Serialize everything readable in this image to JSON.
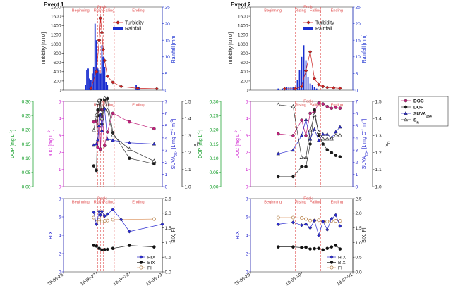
{
  "colors": {
    "turbidity": "#cc2020",
    "rainfall": "#1a2fd0",
    "doc": "#c0207a",
    "dop": "#1a1a1a",
    "suva": "#2a2ad0",
    "sr": "#303030",
    "hix": "#2a2ad0",
    "bix": "#111111",
    "fi": "#b07a40",
    "phase": "#e05050",
    "dop_axis": "#0a9a20",
    "doc_axis": "#d020d0"
  },
  "legend_top": {
    "turbidity": "Turbidity",
    "rainfall": "Rainfall"
  },
  "legend_mid": {
    "doc": "DOC",
    "dop": "DOP",
    "suva": "SUVA",
    "suva_sub": "254",
    "sr": "S",
    "sr_sub": "R"
  },
  "legend_bot": {
    "hix": "HIX",
    "bix": "BIX",
    "fi": "FI"
  },
  "axis_titles": {
    "turbidity": "Turbidity [NTU]",
    "rainfall": "Rainfall [mm]",
    "dop": "DOP [mg L",
    "doc": "DOC [mg L",
    "suva": "SUVA",
    "suva_sub": "254",
    "suva_unit": " [L mg C",
    "suva_close": " m",
    "sr": "S",
    "sr_sub": "R",
    "hix": "HIX",
    "bixfi": "BIX, FI",
    "exp": "-1",
    "bracket": "]"
  },
  "ticks": {
    "turbidity": [
      "0",
      "200",
      "400",
      "600",
      "800",
      "1000",
      "1200",
      "1400",
      "1600",
      "1800"
    ],
    "rainfall": [
      "0",
      "5",
      "10",
      "15",
      "20",
      "25"
    ],
    "dop": [
      "0.00",
      "0.05",
      "0.10",
      "0.15",
      "0.20",
      "0.25",
      "0.30"
    ],
    "doc": [
      "0",
      "1",
      "2",
      "3",
      "4",
      "5"
    ],
    "suva": [
      "0",
      "1",
      "2",
      "3",
      "4",
      "5",
      "6",
      "7"
    ],
    "sr": [
      "1.0",
      "1.1",
      "1.2",
      "1.3",
      "1.4",
      "1.5"
    ],
    "hix": [
      "0",
      "2",
      "4",
      "6",
      "8"
    ],
    "bixfi": [
      "0.0",
      "0.5",
      "1.0",
      "1.5",
      "2.0",
      "2.5"
    ]
  },
  "chart_data": [
    {
      "title": "Event 1",
      "type": "line",
      "phases": {
        "beginning": "Beginning",
        "rising": "Rising",
        "peak": "Peak",
        "falling": "Falling",
        "ending": "Ending"
      },
      "phase_bounds": [
        "19-06-27 01:00",
        "19-06-27 03:00",
        "19-06-27 05:00",
        "19-06-27 13:00"
      ],
      "x_ticks": [
        "19-06-26",
        "19-06-27",
        "19-06-28",
        "19-06-29"
      ],
      "xlim": [
        "19-06-26",
        "19-06-29"
      ],
      "turbidity": {
        "ylim": [
          0,
          1800
        ],
        "x": [
          "19-06-26 20:00",
          "19-06-27 00:00",
          "19-06-27 02:00",
          "19-06-27 03:00",
          "19-06-27 04:00",
          "19-06-27 05:00",
          "19-06-27 06:00",
          "19-06-27 08:00",
          "19-06-27 12:00",
          "19-06-27 18:00",
          "19-06-28 06:00",
          "19-06-28 20:00"
        ],
        "y": [
          35,
          400,
          1080,
          1560,
          1250,
          880,
          640,
          300,
          170,
          80,
          40,
          30
        ]
      },
      "rainfall": {
        "ylim": [
          0,
          25
        ],
        "x": [
          "19-06-26 16:00",
          "19-06-26 17:00",
          "19-06-26 18:00",
          "19-06-26 19:00",
          "19-06-26 20:00",
          "19-06-26 21:00",
          "19-06-26 22:00",
          "19-06-26 23:00",
          "19-06-27 00:00",
          "19-06-27 01:00",
          "19-06-27 02:00",
          "19-06-27 03:00",
          "19-06-27 04:00",
          "19-06-27 05:00",
          "19-06-27 06:00",
          "19-06-27 07:00",
          "19-06-27 08:00",
          "19-06-28 05:00",
          "19-06-28 06:00",
          "19-06-28 07:00"
        ],
        "y": [
          1.5,
          6,
          6.5,
          3.5,
          3,
          5,
          7,
          20,
          15,
          6.5,
          6,
          5,
          13.5,
          10,
          7,
          2.5,
          1.5,
          1.5,
          1,
          1
        ]
      },
      "doc": {
        "ylim": [
          0,
          5
        ],
        "x": [
          "19-06-26 22:00",
          "19-06-27 00:00",
          "19-06-27 01:00",
          "19-06-27 02:00",
          "19-06-27 03:00",
          "19-06-27 04:00",
          "19-06-27 06:00",
          "19-06-27 08:00",
          "19-06-27 12:00",
          "19-06-28 00:00",
          "19-06-28 18:00"
        ],
        "y": [
          3.8,
          3.85,
          2.3,
          4.4,
          2.2,
          4.5,
          2.4,
          3.2,
          4.3,
          3.8,
          3.4
        ]
      },
      "dop": {
        "ylim": [
          0,
          0.3
        ],
        "x": [
          "19-06-26 22:00",
          "19-06-27 00:00",
          "19-06-27 01:00",
          "19-06-27 02:00",
          "19-06-27 03:00",
          "19-06-27 04:00",
          "19-06-27 06:00",
          "19-06-27 08:00",
          "19-06-27 12:00",
          "19-06-28 00:00",
          "19-06-28 18:00"
        ],
        "y": [
          0.073,
          0.057,
          0.27,
          0.25,
          0.305,
          0.22,
          0.305,
          0.31,
          0.19,
          0.1,
          0.08
        ]
      },
      "suva": {
        "ylim": [
          0,
          7
        ],
        "x": [
          "19-06-26 22:00",
          "19-06-27 00:00",
          "19-06-27 01:00",
          "19-06-27 02:00",
          "19-06-27 03:00",
          "19-06-27 04:00",
          "19-06-27 06:00",
          "19-06-27 08:00",
          "19-06-27 12:00",
          "19-06-28 00:00",
          "19-06-28 18:00"
        ],
        "y": [
          3.4,
          3.5,
          3.85,
          5.0,
          6.2,
          4.6,
          6.4,
          3.9,
          3.8,
          3.6,
          3.5
        ]
      },
      "sr": {
        "ylim": [
          1.0,
          1.5
        ],
        "x": [
          "19-06-26 22:00",
          "19-06-27 00:00",
          "19-06-27 01:00",
          "19-06-27 02:00",
          "19-06-27 03:00",
          "19-06-27 04:00",
          "19-06-27 06:00",
          "19-06-27 08:00",
          "19-06-27 12:00",
          "19-06-28 00:00",
          "19-06-28 18:00"
        ],
        "y": [
          1.33,
          1.42,
          1.49,
          1.51,
          1.44,
          1.4,
          1.52,
          1.45,
          1.3,
          1.22,
          1.15
        ]
      },
      "hix": {
        "ylim": [
          0,
          8
        ],
        "x": [
          "19-06-26 22:00",
          "19-06-27 00:00",
          "19-06-27 02:00",
          "19-06-27 03:00",
          "19-06-27 04:00",
          "19-06-27 06:00",
          "19-06-27 08:00",
          "19-06-27 12:00",
          "19-06-27 18:00",
          "19-06-28 00:00",
          "19-06-29 00:00"
        ],
        "y": [
          6.5,
          5.2,
          6.6,
          6.2,
          6.6,
          6.1,
          6.3,
          6.8,
          5.7,
          4.4,
          5.2
        ]
      },
      "bix": {
        "ylim": [
          0,
          2.5
        ],
        "x": [
          "19-06-26 22:00",
          "19-06-27 00:00",
          "19-06-27 02:00",
          "19-06-27 04:00",
          "19-06-27 06:00",
          "19-06-27 08:00",
          "19-06-27 12:00",
          "19-06-28 00:00",
          "19-06-28 18:00"
        ],
        "y": [
          0.9,
          0.88,
          0.8,
          0.75,
          0.76,
          0.77,
          0.8,
          0.9,
          0.85
        ]
      },
      "fi": {
        "ylim": [
          0,
          2.5
        ],
        "x": [
          "19-06-26 22:00",
          "19-06-27 00:00",
          "19-06-27 02:00",
          "19-06-27 04:00",
          "19-06-27 06:00",
          "19-06-27 08:00",
          "19-06-27 12:00",
          "19-06-28 18:00"
        ],
        "y": [
          1.85,
          1.7,
          1.78,
          1.72,
          1.74,
          1.75,
          1.78,
          1.8
        ]
      }
    },
    {
      "title": "Event 2",
      "type": "line",
      "phases": {
        "beginning": "Beginning",
        "rising": "Rising",
        "peak": "Peak",
        "falling": "Falling",
        "ending": "Ending"
      },
      "phase_bounds": [
        "19-06-29 21:00",
        "19-06-30 02:00",
        "19-06-30 04:00",
        "19-06-30 09:00"
      ],
      "x_ticks": [
        "19-06-29",
        "19-06-30",
        "19-07-01"
      ],
      "xlim": [
        "19-06-29",
        "19-07-01"
      ],
      "turbidity": {
        "ylim": [
          0,
          1800
        ],
        "x": [
          "19-06-29 16:00",
          "19-06-29 21:00",
          "19-06-30 00:00",
          "19-06-30 02:00",
          "19-06-30 04:00",
          "19-06-30 06:00",
          "19-06-30 08:00",
          "19-06-30 10:00",
          "19-06-30 12:00",
          "19-06-30 15:00",
          "19-06-30 18:00"
        ],
        "y": [
          30,
          30,
          80,
          420,
          830,
          250,
          120,
          80,
          60,
          50,
          40
        ]
      },
      "rainfall": {
        "ylim": [
          0,
          25
        ],
        "x": [
          "19-06-29 13:00",
          "19-06-29 15:00",
          "19-06-29 17:00",
          "19-06-29 18:00",
          "19-06-29 19:00",
          "19-06-29 20:00",
          "19-06-29 21:00",
          "19-06-29 22:00",
          "19-06-29 23:00",
          "19-06-30 00:00",
          "19-06-30 01:00",
          "19-06-30 02:00",
          "19-06-30 03:00",
          "19-06-30 04:00",
          "19-06-30 05:00",
          "19-06-30 06:00",
          "19-06-30 07:00"
        ],
        "y": [
          0.5,
          0.5,
          1,
          1,
          1,
          1,
          1,
          3,
          6,
          10,
          13.5,
          9,
          4,
          2,
          1.5,
          1,
          0.5
        ]
      },
      "doc": {
        "ylim": [
          0,
          5
        ],
        "x": [
          "19-06-29 13:00",
          "19-06-29 20:00",
          "19-06-30 00:00",
          "19-06-30 02:00",
          "19-06-30 04:00",
          "19-06-30 06:00",
          "19-06-30 08:00",
          "19-06-30 10:00",
          "19-06-30 12:00",
          "19-06-30 14:00",
          "19-06-30 16:00",
          "19-06-30 18:00"
        ],
        "y": [
          3.1,
          3.0,
          3.9,
          3.0,
          4.3,
          4.4,
          4.9,
          4.85,
          4.7,
          4.6,
          4.65,
          4.6
        ]
      },
      "dop": {
        "ylim": [
          0,
          0.3
        ],
        "x": [
          "19-06-29 13:00",
          "19-06-29 20:00",
          "19-06-30 00:00",
          "19-06-30 02:00",
          "19-06-30 04:00",
          "19-06-30 06:00",
          "19-06-30 08:00",
          "19-06-30 10:00",
          "19-06-30 12:00",
          "19-06-30 14:00",
          "19-06-30 16:00",
          "19-06-30 18:00"
        ],
        "y": [
          0.035,
          0.035,
          0.07,
          0.07,
          0.15,
          0.27,
          0.18,
          0.15,
          0.13,
          0.12,
          0.11,
          0.105
        ]
      },
      "suva": {
        "ylim": [
          0,
          7
        ],
        "x": [
          "19-06-29 13:00",
          "19-06-29 20:00",
          "19-06-30 00:00",
          "19-06-30 02:00",
          "19-06-30 04:00",
          "19-06-30 06:00",
          "19-06-30 08:00",
          "19-06-30 10:00",
          "19-06-30 12:00",
          "19-06-30 14:00",
          "19-06-30 16:00",
          "19-06-30 18:00"
        ],
        "y": [
          2.7,
          3.0,
          4.2,
          5.5,
          3.9,
          4.7,
          3.8,
          4.3,
          4.3,
          4.0,
          4.5,
          4.9
        ]
      },
      "sr": {
        "ylim": [
          1.0,
          1.5
        ],
        "x": [
          "19-06-29 13:00",
          "19-06-29 20:00",
          "19-06-30 00:00",
          "19-06-30 02:00",
          "19-06-30 04:00",
          "19-06-30 06:00",
          "19-06-30 08:00",
          "19-06-30 10:00",
          "19-06-30 12:00",
          "19-06-30 14:00",
          "19-06-30 16:00",
          "19-06-30 18:00"
        ],
        "y": [
          1.48,
          1.47,
          1.17,
          1.17,
          1.33,
          1.42,
          1.32,
          1.28,
          1.28,
          1.28,
          1.3,
          1.3
        ]
      },
      "hix": {
        "ylim": [
          0,
          8
        ],
        "x": [
          "19-06-29 13:00",
          "19-06-29 20:00",
          "19-06-30 00:00",
          "19-06-30 02:00",
          "19-06-30 04:00",
          "19-06-30 06:00",
          "19-06-30 08:00",
          "19-06-30 10:00",
          "19-06-30 12:00",
          "19-06-30 14:00",
          "19-06-30 16:00",
          "19-06-30 18:00"
        ],
        "y": [
          5.2,
          5.4,
          5.1,
          5.2,
          4.8,
          5.6,
          4.0,
          5.5,
          4.6,
          5.8,
          6.2,
          5.0
        ]
      },
      "bix": {
        "ylim": [
          0,
          2.5
        ],
        "x": [
          "19-06-29 13:00",
          "19-06-29 20:00",
          "19-06-30 00:00",
          "19-06-30 02:00",
          "19-06-30 04:00",
          "19-06-30 06:00",
          "19-06-30 08:00",
          "19-06-30 10:00",
          "19-06-30 12:00",
          "19-06-30 14:00",
          "19-06-30 16:00",
          "19-06-30 18:00"
        ],
        "y": [
          0.85,
          0.85,
          0.83,
          0.84,
          0.78,
          0.79,
          0.8,
          0.75,
          0.8,
          0.85,
          0.9,
          0.78
        ]
      },
      "fi": {
        "ylim": [
          0,
          2.5
        ],
        "x": [
          "19-06-29 13:00",
          "19-06-29 20:00",
          "19-06-30 00:00",
          "19-06-30 02:00",
          "19-06-30 04:00",
          "19-06-30 06:00",
          "19-06-30 08:00",
          "19-06-30 10:00",
          "19-06-30 12:00",
          "19-06-30 14:00",
          "19-06-30 16:00",
          "19-06-30 18:00"
        ],
        "y": [
          1.85,
          1.85,
          1.84,
          1.8,
          1.75,
          1.75,
          1.76,
          1.72,
          1.72,
          1.74,
          1.74,
          1.74
        ]
      }
    }
  ]
}
